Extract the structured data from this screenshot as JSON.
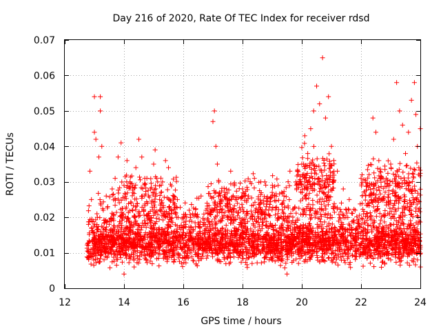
{
  "chart_data": {
    "type": "scatter",
    "title": "Day 216 of 2020, Rate Of TEC Index for receiver rdsd",
    "xlabel": "GPS time / hours",
    "ylabel": "ROTI / TECUs",
    "xlim": [
      12,
      24
    ],
    "ylim": [
      0,
      0.07
    ],
    "xticks": [
      12,
      14,
      16,
      18,
      20,
      22,
      24
    ],
    "xtick_labels": [
      "12",
      "14",
      "16",
      "18",
      "20",
      "22",
      "24"
    ],
    "yticks": [
      0,
      0.01,
      0.02,
      0.03,
      0.04,
      0.05,
      0.06,
      0.07
    ],
    "ytick_labels": [
      "0",
      "0.01",
      "0.02",
      "0.03",
      "0.04",
      "0.05",
      "0.06",
      "0.07"
    ],
    "grid": true,
    "marker": "+",
    "color": "#ff0000",
    "series": [
      {
        "name": "ROTI",
        "points": [
          [
            12.8,
            0.012
          ],
          [
            12.8,
            0.018
          ],
          [
            12.85,
            0.033
          ],
          [
            12.9,
            0.025
          ],
          [
            12.95,
            0.009
          ],
          [
            13.0,
            0.054
          ],
          [
            13.0,
            0.044
          ],
          [
            13.05,
            0.042
          ],
          [
            13.1,
            0.02
          ],
          [
            13.15,
            0.037
          ],
          [
            13.2,
            0.054
          ],
          [
            13.2,
            0.05
          ],
          [
            13.25,
            0.04
          ],
          [
            13.3,
            0.022
          ],
          [
            13.4,
            0.026
          ],
          [
            13.5,
            0.018
          ],
          [
            13.6,
            0.028
          ],
          [
            13.7,
            0.031
          ],
          [
            13.8,
            0.037
          ],
          [
            13.9,
            0.041
          ],
          [
            14.0,
            0.029
          ],
          [
            14.0,
            0.004
          ],
          [
            14.1,
            0.036
          ],
          [
            14.2,
            0.03
          ],
          [
            14.3,
            0.027
          ],
          [
            14.4,
            0.034
          ],
          [
            14.5,
            0.042
          ],
          [
            14.6,
            0.037
          ],
          [
            14.7,
            0.031
          ],
          [
            14.8,
            0.024
          ],
          [
            14.9,
            0.028
          ],
          [
            15.0,
            0.035
          ],
          [
            15.05,
            0.039
          ],
          [
            15.1,
            0.031
          ],
          [
            15.2,
            0.025
          ],
          [
            15.3,
            0.03
          ],
          [
            15.4,
            0.036
          ],
          [
            15.5,
            0.034
          ],
          [
            15.6,
            0.022
          ],
          [
            15.8,
            0.025
          ],
          [
            16.0,
            0.02
          ],
          [
            16.2,
            0.022
          ],
          [
            16.4,
            0.021
          ],
          [
            16.6,
            0.026
          ],
          [
            16.8,
            0.024
          ],
          [
            17.0,
            0.047
          ],
          [
            17.05,
            0.05
          ],
          [
            17.1,
            0.04
          ],
          [
            17.15,
            0.035
          ],
          [
            17.2,
            0.03
          ],
          [
            17.4,
            0.027
          ],
          [
            17.6,
            0.033
          ],
          [
            17.8,
            0.025
          ],
          [
            18.0,
            0.028
          ],
          [
            18.2,
            0.026
          ],
          [
            18.4,
            0.031
          ],
          [
            18.6,
            0.024
          ],
          [
            18.8,
            0.023
          ],
          [
            19.0,
            0.027
          ],
          [
            19.2,
            0.029
          ],
          [
            19.4,
            0.026
          ],
          [
            19.5,
            0.004
          ],
          [
            19.6,
            0.033
          ],
          [
            19.8,
            0.03
          ],
          [
            20.0,
            0.035
          ],
          [
            20.1,
            0.043
          ],
          [
            20.2,
            0.038
          ],
          [
            20.3,
            0.045
          ],
          [
            20.4,
            0.05
          ],
          [
            20.5,
            0.057
          ],
          [
            20.6,
            0.052
          ],
          [
            20.7,
            0.065
          ],
          [
            20.8,
            0.048
          ],
          [
            20.9,
            0.054
          ],
          [
            21.0,
            0.04
          ],
          [
            21.2,
            0.033
          ],
          [
            21.4,
            0.028
          ],
          [
            21.6,
            0.025
          ],
          [
            21.8,
            0.022
          ],
          [
            22.0,
            0.031
          ],
          [
            22.2,
            0.029
          ],
          [
            22.4,
            0.048
          ],
          [
            22.5,
            0.044
          ],
          [
            22.6,
            0.036
          ],
          [
            22.8,
            0.03
          ],
          [
            23.0,
            0.035
          ],
          [
            23.1,
            0.042
          ],
          [
            23.2,
            0.058
          ],
          [
            23.3,
            0.05
          ],
          [
            23.4,
            0.046
          ],
          [
            23.5,
            0.038
          ],
          [
            23.6,
            0.044
          ],
          [
            23.7,
            0.053
          ],
          [
            23.8,
            0.058
          ],
          [
            23.85,
            0.049
          ],
          [
            23.9,
            0.04
          ],
          [
            23.95,
            0.034
          ],
          [
            24.0,
            0.045
          ],
          [
            24.0,
            0.006
          ]
        ]
      }
    ],
    "density_bands": [
      {
        "x_range": [
          12.75,
          24.0
        ],
        "y_range": [
          0.005,
          0.02
        ],
        "count": 2600,
        "seed": 11
      },
      {
        "x_range": [
          12.75,
          24.0
        ],
        "y_range": [
          0.01,
          0.028
        ],
        "count": 650,
        "seed": 23
      },
      {
        "x_range": [
          13.6,
          15.8
        ],
        "y_range": [
          0.015,
          0.035
        ],
        "count": 180,
        "seed": 31
      },
      {
        "x_range": [
          16.8,
          19.6
        ],
        "y_range": [
          0.015,
          0.033
        ],
        "count": 220,
        "seed": 37
      },
      {
        "x_range": [
          19.8,
          21.1
        ],
        "y_range": [
          0.018,
          0.042
        ],
        "count": 200,
        "seed": 41
      },
      {
        "x_range": [
          22.0,
          24.0
        ],
        "y_range": [
          0.015,
          0.04
        ],
        "count": 260,
        "seed": 53
      }
    ]
  }
}
